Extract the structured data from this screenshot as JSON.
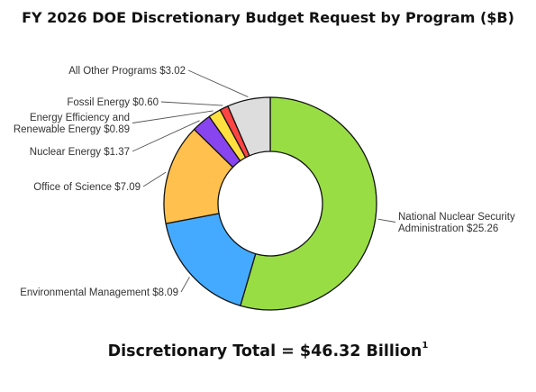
{
  "title": "FY 2026 DOE Discretionary Budget Request by Program ($B)",
  "footer": {
    "text": "Discretionary Total = $46.32 Billion",
    "footnote_mark": "1"
  },
  "chart_data": {
    "type": "pie",
    "style": "donut",
    "title": "FY 2026 DOE Discretionary Budget Request by Program ($B)",
    "unit": "$B",
    "total": 46.32,
    "slices": [
      {
        "name": "National Nuclear Security Administration",
        "value": 25.26,
        "label_lines": [
          "National Nuclear Security",
          "Administration $25.26"
        ],
        "color": "#99dd44"
      },
      {
        "name": "Environmental Management",
        "value": 8.09,
        "label_lines": [
          "Environmental Management $8.09"
        ],
        "color": "#44aaff"
      },
      {
        "name": "Office of Science",
        "value": 7.09,
        "label_lines": [
          "Office of Science $7.09"
        ],
        "color": "#ffc04d"
      },
      {
        "name": "Nuclear Energy",
        "value": 1.37,
        "label_lines": [
          "Nuclear Energy $1.37"
        ],
        "color": "#8844ee"
      },
      {
        "name": "Energy Efficiency and Renewable Energy",
        "value": 0.89,
        "label_lines": [
          "Energy Efficiency and",
          "Renewable Energy $0.89"
        ],
        "color": "#ffe040"
      },
      {
        "name": "Fossil Energy",
        "value": 0.6,
        "label_lines": [
          "Fossil Energy $0.60"
        ],
        "color": "#ff4444"
      },
      {
        "name": "All Other Programs",
        "value": 3.02,
        "label_lines": [
          "All Other Programs $3.02"
        ],
        "color": "#dddddd"
      }
    ]
  }
}
